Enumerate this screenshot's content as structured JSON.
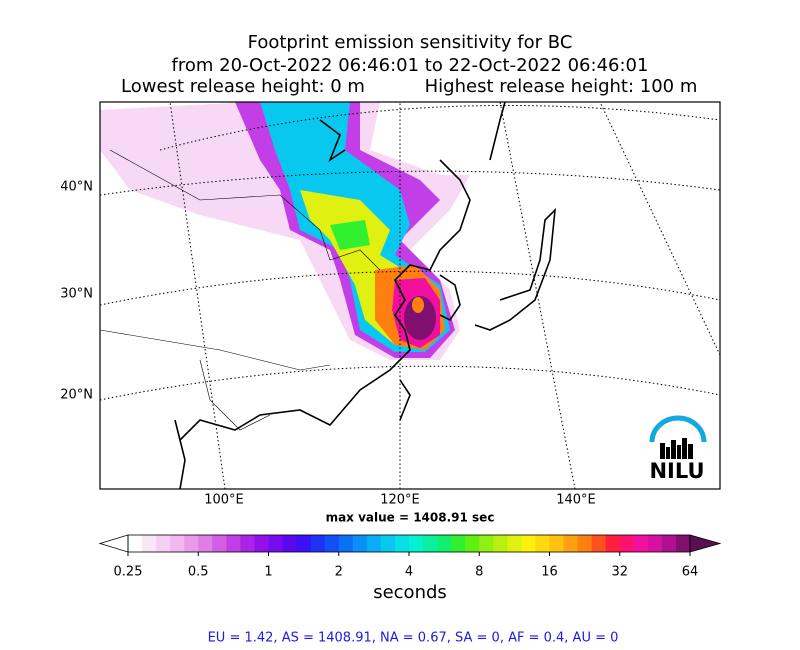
{
  "header": {
    "title_lines": [
      "Footprint emission sensitivity for BC",
      "from 20-Oct-2022 06:46:01 to 22-Oct-2022 06:46:01"
    ],
    "lowest_release": "Lowest release height: 0 m",
    "highest_release": "Highest release height: 100 m"
  },
  "map": {
    "lat_labels": [
      "40°N",
      "30°N",
      "20°N"
    ],
    "lon_labels": [
      "100°E",
      "120°E",
      "140°E"
    ],
    "max_value_text": "max value = 1408.91 sec"
  },
  "logo": {
    "text": "NILU"
  },
  "colorbar": {
    "lim": [
      0.25,
      64
    ],
    "log_scale": true,
    "ticks": [
      0.25,
      0.5,
      1,
      2,
      4,
      8,
      16,
      32,
      64
    ],
    "label": "seconds",
    "under_color": "#ffffff",
    "over_color": "#5a1050",
    "colors": [
      "#ffffff",
      "#fbe6f8",
      "#f6d0f3",
      "#f0b8ee",
      "#e99be9",
      "#e07de6",
      "#d35de5",
      "#c23ee6",
      "#ad22e8",
      "#9410ea",
      "#7a0aee",
      "#5a08f2",
      "#3a10f5",
      "#2030f5",
      "#1050f5",
      "#0a70f5",
      "#0890f5",
      "#08aef5",
      "#08c8f0",
      "#08e0e8",
      "#08f0d0",
      "#08f0a0",
      "#10f070",
      "#30f030",
      "#60f010",
      "#90f010",
      "#b8f010",
      "#e0f010",
      "#fff010",
      "#ffd810",
      "#ffc010",
      "#ffa010",
      "#ff8010",
      "#ff5020",
      "#ff2040",
      "#ff1070",
      "#f010a0",
      "#d810a0",
      "#b01090",
      "#801070"
    ]
  },
  "footer": {
    "text": "EU = 1.42,  AS = 1408.91,  NA = 0.67,  SA = 0,  AF = 0.4,  AU = 0"
  }
}
